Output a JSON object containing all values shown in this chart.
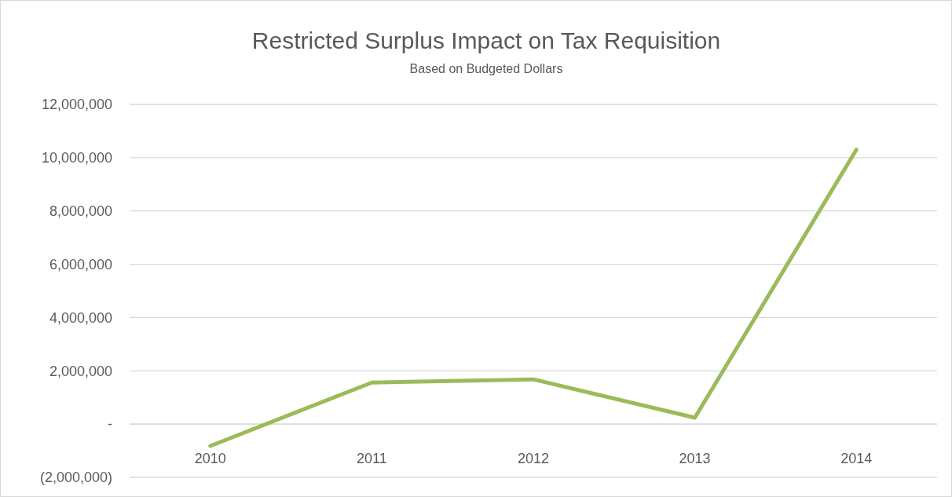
{
  "chart_data": {
    "type": "line",
    "title": "Restricted Surplus Impact on Tax Requisition",
    "subtitle": "Based on Budgeted Dollars",
    "categories": [
      "2010",
      "2011",
      "2012",
      "2013",
      "2014"
    ],
    "series": [
      {
        "color": "#9bbb59",
        "values": [
          -820000,
          1560000,
          1680000,
          240000,
          10300000
        ]
      }
    ],
    "ylim": [
      -2000000,
      12000000
    ],
    "yticks": [
      {
        "value": -2000000,
        "label": "(2,000,000)"
      },
      {
        "value": 0,
        "label": "-"
      },
      {
        "value": 2000000,
        "label": "2,000,000"
      },
      {
        "value": 4000000,
        "label": "4,000,000"
      },
      {
        "value": 6000000,
        "label": "6,000,000"
      },
      {
        "value": 8000000,
        "label": "8,000,000"
      },
      {
        "value": 10000000,
        "label": "10,000,000"
      },
      {
        "value": 12000000,
        "label": "12,000,000"
      }
    ],
    "grid": "y",
    "marker": "none",
    "line_style": "solid"
  }
}
